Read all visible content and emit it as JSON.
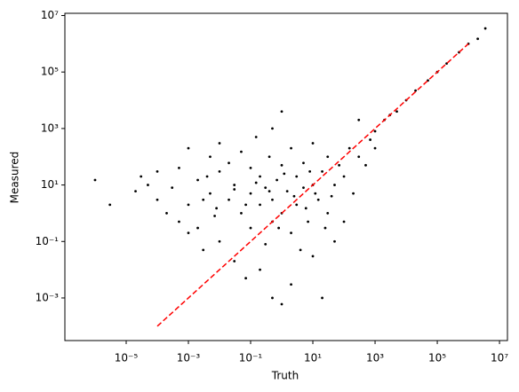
{
  "chart_data": {
    "type": "scatter",
    "xlabel": "Truth",
    "ylabel": "Measured",
    "xscale": "log",
    "yscale": "log",
    "color": "#000000",
    "xlim": [
      1.07e-07,
      18000000.0
    ],
    "ylim": [
      3.1e-05,
      12000000.0
    ],
    "xticks": [
      {
        "value": 1e-05,
        "label": "10⁻⁵"
      },
      {
        "value": 0.001,
        "label": "10⁻³"
      },
      {
        "value": 0.1,
        "label": "10⁻¹"
      },
      {
        "value": 10,
        "label": "10¹"
      },
      {
        "value": 1000,
        "label": "10³"
      },
      {
        "value": 100000,
        "label": "10⁵"
      },
      {
        "value": 10000000,
        "label": "10⁷"
      }
    ],
    "yticks": [
      {
        "value": 0.001,
        "label": "10⁻³"
      },
      {
        "value": 0.1,
        "label": "10⁻¹"
      },
      {
        "value": 10,
        "label": "10¹"
      },
      {
        "value": 1000,
        "label": "10³"
      },
      {
        "value": 100000,
        "label": "10⁵"
      },
      {
        "value": 10000000,
        "label": "10⁷"
      }
    ],
    "x": [
      1e-06,
      3e-06,
      3e-05,
      2e-05,
      5e-05,
      0.0001,
      0.0001,
      0.0002,
      0.0003,
      0.0005,
      0.0005,
      0.001,
      0.001,
      0.002,
      0.002,
      0.003,
      0.005,
      0.005,
      0.007,
      0.01,
      0.01,
      0.01,
      0.02,
      0.02,
      0.03,
      0.03,
      0.05,
      0.05,
      0.07,
      0.1,
      0.1,
      0.1,
      0.15,
      0.2,
      0.2,
      0.2,
      0.3,
      0.3,
      0.4,
      0.5,
      0.5,
      0.5,
      0.7,
      1,
      1,
      1,
      1,
      1.5,
      2,
      2,
      2,
      3,
      3,
      4,
      5,
      5,
      7,
      10,
      10,
      10,
      15,
      20,
      20,
      30,
      30,
      50,
      50,
      70,
      100,
      100,
      150,
      200,
      300,
      300,
      500,
      700,
      1000,
      1000,
      2000,
      3000,
      5000,
      10000,
      20000,
      50000,
      100000,
      200000,
      500000,
      1000000,
      2000000,
      3500000,
      0.003,
      0.03,
      0.07,
      0.15,
      0.4,
      0.8,
      1.2,
      2.5,
      6,
      8,
      12,
      25,
      40,
      0.004,
      0.008,
      0.5,
      0.001
    ],
    "values": [
      15,
      2,
      20,
      6,
      10,
      3,
      30,
      1,
      8,
      40,
      0.5,
      200,
      2,
      15,
      0.3,
      0.05,
      100,
      5,
      0.8,
      30,
      0.1,
      300,
      3,
      60,
      0.02,
      10,
      1,
      150,
      0.005,
      5,
      0.3,
      40,
      500,
      0.01,
      2,
      20,
      8,
      0.08,
      100,
      3,
      0.001,
      0.5,
      15,
      4000,
      1,
      50,
      0.0006,
      6,
      0.2,
      200,
      0.003,
      20,
      2,
      0.05,
      60,
      8,
      0.5,
      300,
      10,
      0.03,
      3,
      30,
      0.001,
      1,
      100,
      10,
      0.1,
      50,
      20,
      0.5,
      200,
      5,
      100,
      2000,
      50,
      400,
      800,
      200,
      2000,
      3000,
      4000,
      10000,
      22000,
      50000,
      100000,
      200000,
      500000,
      1000000,
      1500000,
      3500000,
      3,
      7,
      2,
      12,
      6,
      0.3,
      25,
      4,
      1.5,
      30,
      5,
      0.3,
      4,
      20,
      1.5,
      1000,
      0.2
    ],
    "reference_line": {
      "x": [
        0.0001,
        1000000
      ],
      "y": [
        0.0001,
        1000000
      ],
      "color": "#ff0000",
      "style": "dashed"
    }
  }
}
